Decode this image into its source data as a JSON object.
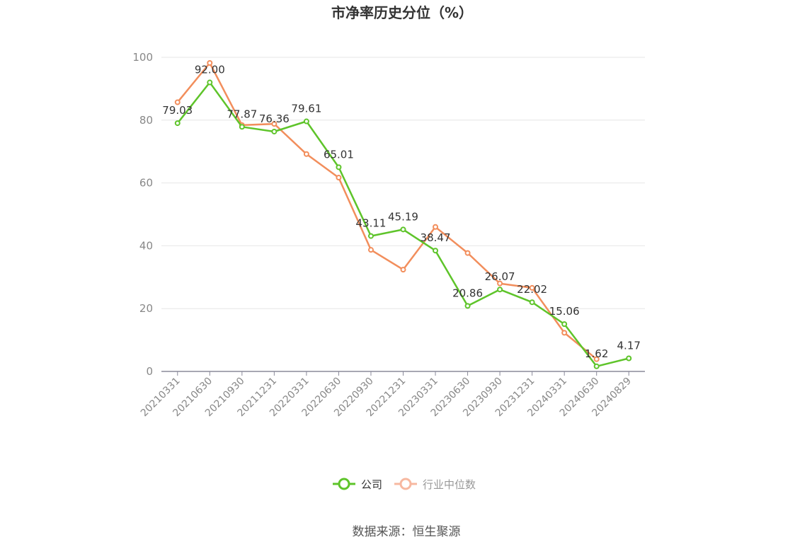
{
  "chart_data": {
    "type": "line",
    "title": "市净率历史分位（%）",
    "categories": [
      "20210331",
      "20210630",
      "20210930",
      "20211231",
      "20220331",
      "20220630",
      "20220930",
      "20221231",
      "20230331",
      "20230630",
      "20230930",
      "20231231",
      "20240331",
      "20240630",
      "20240829"
    ],
    "series": [
      {
        "name": "公司",
        "color": "#5ec42a",
        "values": [
          79.03,
          92.0,
          77.87,
          76.36,
          79.61,
          65.01,
          43.11,
          45.19,
          38.47,
          20.86,
          26.07,
          22.02,
          15.06,
          1.62,
          4.17
        ],
        "labels": [
          "79.03",
          "92.00",
          "77.87",
          "76.36",
          "79.61",
          "65.01",
          "43.11",
          "45.19",
          "38.47",
          "20.86",
          "26.07",
          "22.02",
          "15.06",
          "1.62",
          "4.17"
        ]
      },
      {
        "name": "行业中位数",
        "color": "#f28e5c",
        "values": [
          85.7,
          98.2,
          78.4,
          78.8,
          69.2,
          61.7,
          38.7,
          32.4,
          46.0,
          37.7,
          28.0,
          26.6,
          12.3,
          3.9,
          null
        ]
      }
    ],
    "yticks": [
      "0",
      "20",
      "40",
      "60",
      "80",
      "100"
    ],
    "ylim": [
      0,
      100
    ],
    "grid": true,
    "legend": "bottom-center"
  },
  "source": "数据来源：恒生聚源"
}
